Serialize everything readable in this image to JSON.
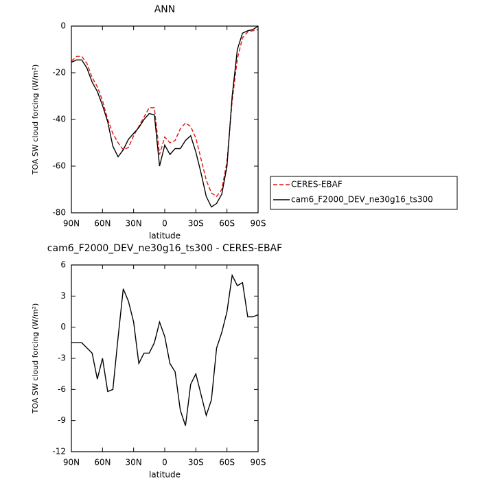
{
  "chart_data": [
    {
      "type": "line",
      "title": "ANN",
      "x_label": "latitude",
      "y_label": "TOA SW cloud forcing (W/m²)",
      "x": [
        90,
        85,
        80,
        75,
        70,
        65,
        60,
        55,
        50,
        45,
        40,
        35,
        30,
        25,
        20,
        15,
        10,
        5,
        0,
        -5,
        -10,
        -15,
        -20,
        -25,
        -30,
        -35,
        -40,
        -45,
        -50,
        -55,
        -60,
        -65,
        -70,
        -75,
        -80,
        -85,
        -90
      ],
      "series": [
        {
          "name": "CERES-EBAF",
          "color": "#e3120b",
          "dash": "dashed",
          "values": [
            -15,
            -13,
            -13,
            -16,
            -22,
            -26,
            -32,
            -40,
            -46,
            -50,
            -53,
            -52,
            -47,
            -43,
            -39,
            -35,
            -35,
            -55,
            -47.5,
            -50,
            -49,
            -44,
            -41.5,
            -43,
            -48,
            -57,
            -66,
            -71.5,
            -73,
            -70,
            -58,
            -32,
            -14,
            -5,
            -2.5,
            -2,
            -1.5
          ]
        },
        {
          "name": "cam6_F2000_DEV_ne30g16_ts300",
          "color": "#000000",
          "dash": "solid",
          "values": [
            -15.5,
            -14.5,
            -14.5,
            -18,
            -24,
            -28,
            -34,
            -41,
            -51.5,
            -56,
            -53,
            -48.5,
            -46,
            -43.5,
            -40,
            -37.5,
            -38,
            -60,
            -51,
            -55,
            -52.5,
            -52.5,
            -49,
            -47,
            -54,
            -63,
            -73,
            -77.5,
            -76,
            -72,
            -60,
            -30,
            -10,
            -3,
            -2,
            -1.5,
            0
          ]
        }
      ],
      "xlim": [
        90,
        -90
      ],
      "xticks": [
        {
          "value": 90,
          "label": "90N"
        },
        {
          "value": 60,
          "label": "60N"
        },
        {
          "value": 30,
          "label": "30N"
        },
        0,
        {
          "value": -30,
          "label": "30S"
        },
        {
          "value": -60,
          "label": "60S"
        },
        {
          "value": -90,
          "label": "90S"
        }
      ],
      "ylim": [
        -80,
        0
      ],
      "yticks": [
        0,
        -20,
        -40,
        -60,
        -80
      ],
      "legend": "right"
    },
    {
      "type": "line",
      "title": "cam6_F2000_DEV_ne30g16_ts300 - CERES-EBAF",
      "x_label": "latitude",
      "y_label": "TOA SW cloud forcing (W/m²)",
      "x": [
        90,
        85,
        80,
        75,
        70,
        65,
        60,
        55,
        50,
        45,
        40,
        35,
        30,
        25,
        20,
        15,
        10,
        5,
        0,
        -5,
        -10,
        -15,
        -20,
        -25,
        -30,
        -35,
        -40,
        -45,
        -50,
        -55,
        -60,
        -65,
        -70,
        -75,
        -80,
        -85,
        -90
      ],
      "series": [
        {
          "color": "#000000",
          "dash": "solid",
          "values": [
            -1.5,
            -1.5,
            -1.5,
            -2,
            -2.5,
            -5,
            -3,
            -6.2,
            -6,
            -1,
            3.7,
            2.5,
            0.5,
            -3.5,
            -2.5,
            -2.5,
            -1.5,
            0.5,
            -0.9,
            -3.5,
            -4.3,
            -8,
            -9.5,
            -5.5,
            -4.5,
            -6.5,
            -8.5,
            -7,
            -2,
            -0.5,
            1.5,
            5,
            4,
            4.3,
            1,
            1,
            1.2
          ]
        }
      ],
      "xlim": [
        90,
        -90
      ],
      "xticks": [
        {
          "value": 90,
          "label": "90N"
        },
        {
          "value": 60,
          "label": "60N"
        },
        {
          "value": 30,
          "label": "30N"
        },
        0,
        {
          "value": -30,
          "label": "30S"
        },
        {
          "value": -60,
          "label": "60S"
        },
        {
          "value": -90,
          "label": "90S"
        }
      ],
      "ylim": [
        -12,
        6
      ],
      "yticks": [
        6,
        3,
        0,
        -3,
        -6,
        -9,
        -12
      ]
    }
  ]
}
